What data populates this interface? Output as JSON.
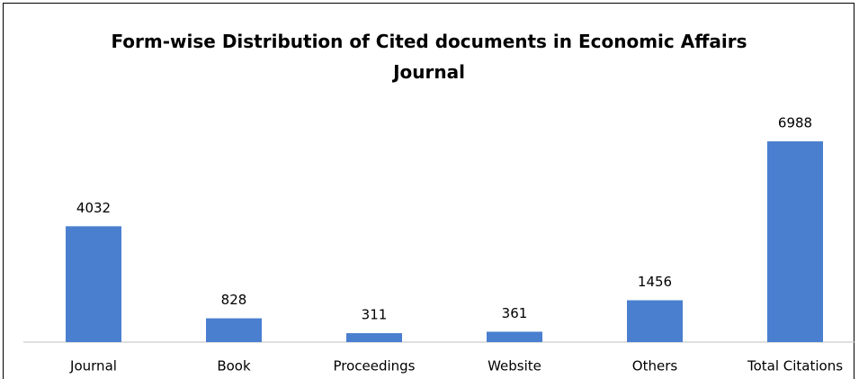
{
  "chart_data": {
    "type": "bar",
    "title": "Form-wise Distribution of Cited documents in Economic Affairs Journal",
    "categories": [
      "Journal",
      "Book",
      "Proceedings",
      "Website",
      "Others",
      "Total Citations"
    ],
    "values": [
      4032,
      828,
      311,
      361,
      1456,
      6988
    ],
    "color": "#4a7fcf"
  }
}
